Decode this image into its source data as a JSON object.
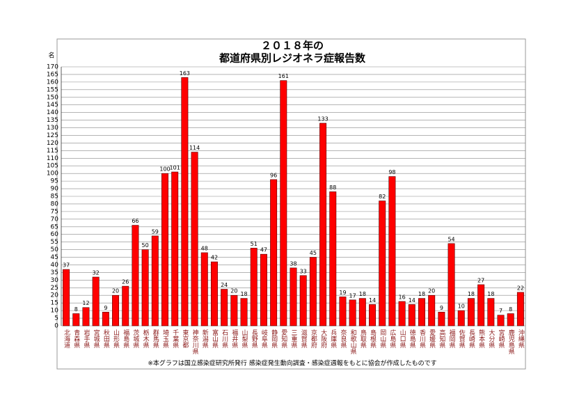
{
  "chart_data": {
    "type": "bar",
    "title": "２０１８年の",
    "subtitle": "都道府県別レジオネラ症報告数",
    "y_label": "名",
    "note": "※本グラフは国立感染症研究所発行 感染症発生動向調査・感染症週報をもとに協会が作成したものです",
    "categories": [
      "北海道",
      "青森県",
      "岩手県",
      "宮城県",
      "秋田県",
      "山形県",
      "福島県",
      "茨城県",
      "栃木県",
      "群馬県",
      "埼玉県",
      "千葉県",
      "東京都",
      "神奈川県",
      "新潟県",
      "富山県",
      "石川県",
      "福井県",
      "山梨県",
      "長野県",
      "岐阜県",
      "静岡県",
      "愛知県",
      "三重県",
      "滋賀県",
      "京都府",
      "大阪府",
      "兵庫県",
      "奈良県",
      "和歌山県",
      "鳥取県",
      "島根県",
      "岡山県",
      "広島県",
      "山口県",
      "徳島県",
      "香川県",
      "愛媛県",
      "高知県",
      "福岡県",
      "佐賀県",
      "長崎県",
      "熊本県",
      "大分県",
      "宮崎県",
      "鹿児島県",
      "沖縄県"
    ],
    "values": [
      37,
      8,
      12,
      32,
      9,
      20,
      26,
      66,
      50,
      59,
      100,
      101,
      163,
      114,
      48,
      42,
      24,
      20,
      18,
      51,
      47,
      96,
      161,
      38,
      33,
      45,
      133,
      88,
      19,
      17,
      18,
      14,
      82,
      98,
      16,
      14,
      18,
      20,
      9,
      54,
      10,
      18,
      27,
      18,
      7,
      8,
      22
    ],
    "color": "#ff0000",
    "label_color": "#8b1a1a",
    "ylim": [
      0,
      170
    ],
    "yticks": [
      0,
      5,
      10,
      15,
      20,
      25,
      30,
      35,
      40,
      45,
      50,
      55,
      60,
      65,
      70,
      75,
      80,
      85,
      90,
      95,
      100,
      105,
      110,
      115,
      120,
      125,
      130,
      135,
      140,
      145,
      150,
      155,
      160,
      165,
      170
    ],
    "grid": true
  }
}
